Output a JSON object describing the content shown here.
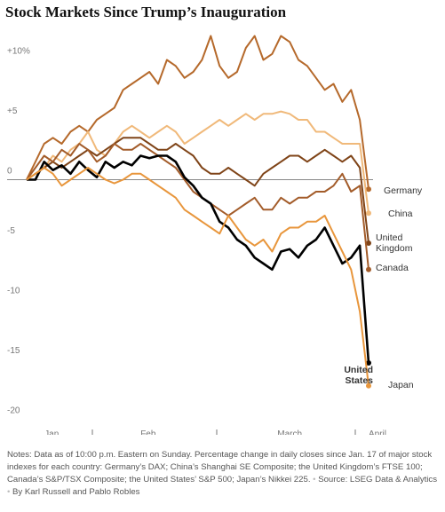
{
  "chart_data": {
    "type": "line",
    "title": "Stock Markets Since Trump’s Inauguration",
    "categories": [
      null,
      null,
      null,
      "Jan.",
      null,
      null,
      null,
      null,
      null,
      null,
      null,
      null,
      null,
      null,
      "Feb.",
      null,
      null,
      null,
      null,
      null,
      null,
      null,
      null,
      null,
      null,
      null,
      null,
      null,
      null,
      null,
      "March",
      null,
      null,
      null,
      null,
      null,
      null,
      null,
      null,
      "April"
    ],
    "series": [
      {
        "name": "Germany",
        "color": "#b5692b",
        "values": [
          0,
          1.5,
          3,
          3.5,
          3,
          4,
          4.5,
          4,
          5,
          5.5,
          6,
          7.5,
          8,
          8.5,
          9,
          8,
          10,
          9.5,
          8.5,
          9,
          10,
          12,
          9.5,
          8.5,
          9,
          11,
          12,
          10,
          10.5,
          12,
          11.5,
          10,
          9.5,
          8.5,
          7.5,
          8,
          6.5,
          7.5,
          5,
          -0.8
        ]
      },
      {
        "name": "China",
        "color": "#f0b97a",
        "values": [
          0,
          0.5,
          1,
          2,
          1.5,
          2.5,
          3,
          4,
          2.5,
          2,
          3,
          4,
          4.5,
          4,
          3.5,
          4,
          4.5,
          4,
          3,
          3.5,
          4,
          4.5,
          5,
          4.5,
          5,
          5.5,
          5,
          5.5,
          5.5,
          5.7,
          5.5,
          5,
          5,
          4,
          4,
          3.5,
          3,
          3,
          3,
          -2.8
        ]
      },
      {
        "name": "United Kingdom",
        "color": "#7f4418",
        "values": [
          0,
          0.5,
          1,
          1.5,
          1,
          1.5,
          2,
          2.5,
          2,
          2.5,
          3,
          3.5,
          3.5,
          3.5,
          3,
          2.5,
          2.5,
          3,
          2.5,
          2,
          1,
          0.5,
          0.5,
          1,
          0.5,
          0,
          -0.5,
          0.5,
          1,
          1.5,
          2,
          2,
          1.5,
          2,
          2.5,
          2,
          1.5,
          2,
          1,
          -5.3
        ]
      },
      {
        "name": "Canada",
        "color": "#a35c2a",
        "values": [
          0,
          1,
          2,
          1.5,
          2.5,
          2,
          3,
          2.5,
          1.5,
          2,
          3,
          2.5,
          2.5,
          3,
          2.5,
          2,
          1.5,
          1,
          0,
          -1,
          -1.5,
          -2,
          -2.5,
          -3,
          -2.5,
          -2,
          -1.5,
          -2.5,
          -2.5,
          -1.5,
          -2,
          -1.5,
          -1.5,
          -1,
          -1,
          -0.5,
          0.5,
          -1,
          -0.5,
          -7.5
        ]
      },
      {
        "name": "United States",
        "color": "#000000",
        "values": [
          0,
          0,
          1.5,
          0.8,
          1.2,
          0.5,
          1.5,
          0.8,
          0.2,
          1.5,
          1,
          1.5,
          1.2,
          2,
          1.8,
          2,
          2,
          1.5,
          0.2,
          -0.5,
          -1.5,
          -2,
          -3.5,
          -4,
          -5,
          -5.5,
          -6.5,
          -7,
          -7.5,
          -6,
          -5.8,
          -6.5,
          -5.5,
          -5,
          -4,
          -5.5,
          -7,
          -6.5,
          -5.5,
          -15.3
        ]
      },
      {
        "name": "Japan",
        "color": "#e8963c",
        "values": [
          0,
          0.5,
          1,
          0.5,
          -0.5,
          0,
          0.5,
          1,
          0.5,
          0,
          -0.3,
          0,
          0.5,
          0.5,
          0,
          -0.5,
          -1,
          -1.5,
          -2.5,
          -3,
          -3.5,
          -4,
          -4.5,
          -3,
          -4,
          -5,
          -5.5,
          -5,
          -6,
          -4.5,
          -4,
          -4,
          -3.5,
          -3.5,
          -3,
          -4.5,
          -6,
          -7.5,
          -11,
          -17.2
        ]
      }
    ],
    "ylim": [
      -21,
      13
    ],
    "yticks": [
      {
        "value": 10,
        "label": "+10%"
      },
      {
        "value": 5,
        "label": "+5"
      },
      0,
      -5,
      -10,
      -15,
      -20
    ],
    "notes": "Notes: Data as of 10:00 p.m. Eastern on Sunday. Percentage change in daily closes since Jan. 17 of major stock indexes for each country: Germany’s DAX; China’s Shanghai SE Composite; the United Kingdom’s FTSE 100; Canada’s S&P/TSX Composite; the United States’ S&P 500; Japan’s Nikkei 225.",
    "source": "Source: LSEG Data & Analytics",
    "byline": "By Karl Russell and Pablo Robles"
  }
}
